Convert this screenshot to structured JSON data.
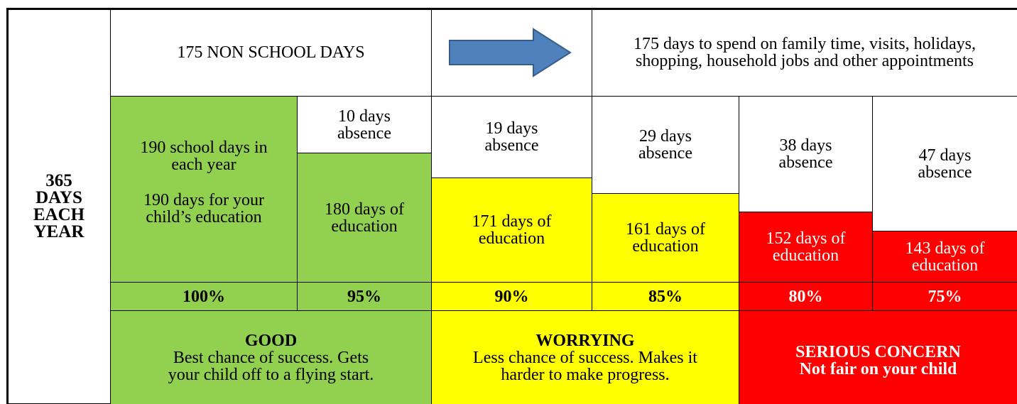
{
  "side_label": [
    "365",
    "DAYS",
    "EACH",
    "YEAR"
  ],
  "top_row": {
    "non_school": "175 NON SCHOOL DAYS",
    "non_school_detail": "175 days to spend on family time, visits, holidays, shopping, household jobs and other appointments"
  },
  "full_year": {
    "school_days": "190 school days in each year",
    "education": "190 days for your child’s education",
    "percent": "100%"
  },
  "columns": [
    {
      "absence": "10 days absence",
      "education": "180 days of education",
      "percent": "95%"
    },
    {
      "absence": "19 days absence",
      "education": "171 days of education",
      "percent": "90%"
    },
    {
      "absence": "29 days absence",
      "education": "161 days of education",
      "percent": "85%"
    },
    {
      "absence": "38 days absence",
      "education": "152 days of education",
      "percent": "80%"
    },
    {
      "absence": "47 days absence",
      "education": "143 days of education",
      "percent": "75%"
    }
  ],
  "bands": [
    {
      "title": "GOOD",
      "text": "Best chance of success. Gets your child off to a flying start."
    },
    {
      "title": "WORRYING",
      "text": "Less chance of success. Makes it harder to make progress."
    },
    {
      "title": "SERIOUS CONCERN",
      "text": "Not fair on your child"
    }
  ]
}
